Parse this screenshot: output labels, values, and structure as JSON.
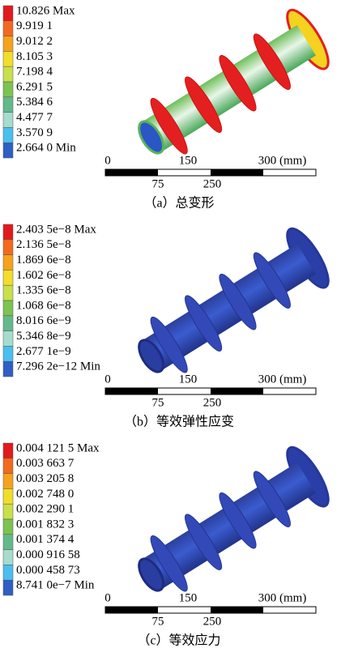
{
  "panels": [
    {
      "legend": [
        "10.826 Max",
        "9.919 1",
        "9.012 2",
        "8.105 3",
        "7.198 4",
        "6.291 5",
        "5.384 6",
        "4.477 7",
        "3.570 9",
        "2.664 0 Min"
      ],
      "scale": {
        "top": [
          "0",
          "150",
          "300"
        ],
        "bottom": [
          "75",
          "250"
        ],
        "unit": "(mm)"
      },
      "caption": "（a）总变形"
    },
    {
      "legend": [
        "2.403 5e−8 Max",
        "2.136 5e−8",
        "1.869 6e−8",
        "1.602 6e−8",
        "1.335 6e−8",
        "1.068 6e−8",
        "8.016 6e−9",
        "5.346 8e−9",
        "2.677 1e−9",
        "7.296 2e−12 Min"
      ],
      "scale": {
        "top": [
          "0",
          "150",
          "300"
        ],
        "bottom": [
          "75",
          "250"
        ],
        "unit": "(mm)"
      },
      "caption": "（b）等效弹性应变"
    },
    {
      "legend": [
        "0.004 121 5 Max",
        "0.003 663 7",
        "0.003 205 8",
        "0.002 748 0",
        "0.002 290 1",
        "0.001 832 3",
        "0.001 374 4",
        "0.000 916 58",
        "0.000 458 73",
        "8.741 0e−7 Min"
      ],
      "scale": {
        "top": [
          "0",
          "150",
          "300"
        ],
        "bottom": [
          "75",
          "250"
        ],
        "unit": "(mm)"
      },
      "caption": "（c）等效应力"
    }
  ]
}
